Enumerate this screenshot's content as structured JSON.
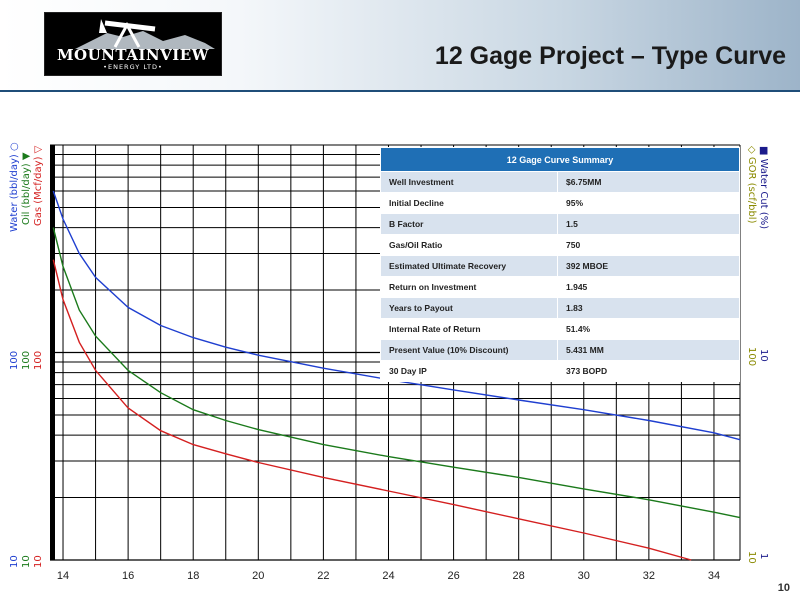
{
  "header": {
    "logo_main": "MOUNTAINVIEW",
    "logo_sub": "•ENERGY LTD•",
    "title": "12 Gage Project – Type Curve"
  },
  "page_number": "10",
  "axes": {
    "left_labels": [
      "Water (bbl/day) ○",
      "Oil (bbl/day) ▼",
      "Gas (Mcf/day) ▽"
    ],
    "left_colors": [
      "#1f3fd0",
      "#1b7a1b",
      "#d42020"
    ],
    "right_labels": [
      "■ Water Cut (%)",
      "◇ GOR (scf/bbl)"
    ],
    "right_colors": [
      "#1b1b8c",
      "#8a8a00"
    ],
    "left_ticks": [
      {
        "values": [
          "100",
          "100",
          "100"
        ]
      },
      {
        "values": [
          "10",
          "10",
          "10"
        ]
      }
    ],
    "right_ticks": [
      {
        "values": [
          "10",
          "100"
        ]
      },
      {
        "values": [
          "1",
          "10"
        ]
      }
    ],
    "right_top_tick": "1"
  },
  "summary_table": {
    "header": "12 Gage Curve Summary",
    "rows": [
      {
        "label": "Well Investment",
        "value": "$6.75MM"
      },
      {
        "label": "Initial Decline",
        "value": "95%"
      },
      {
        "label": "B Factor",
        "value": "1.5"
      },
      {
        "label": "Gas/Oil Ratio",
        "value": "750"
      },
      {
        "label": "Estimated Ultimate Recovery",
        "value": "392 MBOE"
      },
      {
        "label": "Return on Investment",
        "value": "1.945"
      },
      {
        "label": "Years to Payout",
        "value": "1.83"
      },
      {
        "label": "Internal Rate of Return",
        "value": "51.4%"
      },
      {
        "label": "Present Value (10% Discount)",
        "value": "5.431 MM"
      },
      {
        "label": "30 Day IP",
        "value": "373 BOPD"
      }
    ]
  },
  "chart_data": {
    "type": "line",
    "y_scale": "log",
    "xlim": [
      13.6,
      34.8
    ],
    "ylim": [
      10,
      1000
    ],
    "x_ticks": [
      14,
      16,
      18,
      20,
      22,
      24,
      26,
      28,
      30,
      32,
      34
    ],
    "grid": true,
    "series": [
      {
        "color": "#1f3fd0",
        "x": [
          13.7,
          14,
          14.5,
          15,
          16,
          17,
          18,
          19,
          20,
          22,
          24,
          26,
          28,
          30,
          32,
          34,
          34.8
        ],
        "y": [
          600,
          440,
          300,
          230,
          165,
          135,
          118,
          106,
          97,
          84,
          74,
          66,
          59,
          53,
          47,
          41,
          38
        ]
      },
      {
        "color": "#1b7a1b",
        "x": [
          13.7,
          14,
          14.5,
          15,
          16,
          17,
          18,
          19,
          20,
          22,
          24,
          26,
          28,
          30,
          32,
          34,
          34.8
        ],
        "y": [
          400,
          260,
          160,
          120,
          82,
          64,
          53,
          47,
          42.5,
          36,
          31.5,
          28,
          25,
          22,
          19.5,
          17,
          16
        ]
      },
      {
        "color": "#d42020",
        "x": [
          13.7,
          14,
          14.5,
          15,
          16,
          17,
          18,
          19,
          20,
          22,
          24,
          26,
          28,
          30,
          32,
          33.3
        ],
        "y": [
          280,
          180,
          112,
          82,
          54,
          42,
          36,
          32.5,
          29.5,
          25,
          21.5,
          18.5,
          15.8,
          13.5,
          11.4,
          10
        ]
      }
    ]
  }
}
